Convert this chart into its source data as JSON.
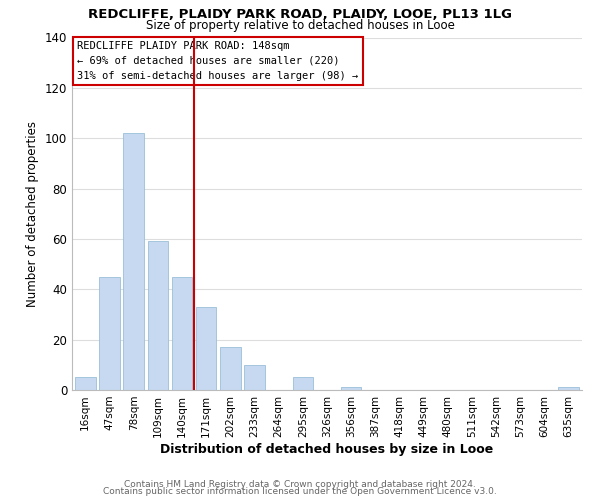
{
  "title1": "REDCLIFFE, PLAIDY PARK ROAD, PLAIDY, LOOE, PL13 1LG",
  "title2": "Size of property relative to detached houses in Looe",
  "xlabel": "Distribution of detached houses by size in Looe",
  "ylabel": "Number of detached properties",
  "categories": [
    "16sqm",
    "47sqm",
    "78sqm",
    "109sqm",
    "140sqm",
    "171sqm",
    "202sqm",
    "233sqm",
    "264sqm",
    "295sqm",
    "326sqm",
    "356sqm",
    "387sqm",
    "418sqm",
    "449sqm",
    "480sqm",
    "511sqm",
    "542sqm",
    "573sqm",
    "604sqm",
    "635sqm"
  ],
  "values": [
    5,
    45,
    102,
    59,
    45,
    33,
    17,
    10,
    0,
    5,
    0,
    1,
    0,
    0,
    0,
    0,
    0,
    0,
    0,
    0,
    1
  ],
  "bar_color": "#c6d9f0",
  "bar_edge_color": "#9abfd8",
  "vline_x_index": 4.5,
  "vline_color": "#cc0000",
  "annotation_line1": "REDCLIFFE PLAIDY PARK ROAD: 148sqm",
  "annotation_line2": "← 69% of detached houses are smaller (220)",
  "annotation_line3": "31% of semi-detached houses are larger (98) →",
  "box_edge_color": "#cc0000",
  "ylim": [
    0,
    140
  ],
  "yticks": [
    0,
    20,
    40,
    60,
    80,
    100,
    120,
    140
  ],
  "footer1": "Contains HM Land Registry data © Crown copyright and database right 2024.",
  "footer2": "Contains public sector information licensed under the Open Government Licence v3.0.",
  "background_color": "#ffffff",
  "grid_color": "#dddddd"
}
